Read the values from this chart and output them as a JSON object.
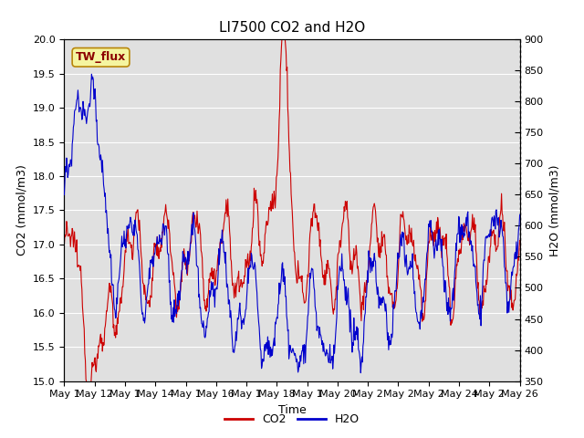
{
  "title": "LI7500 CO2 and H2O",
  "xlabel": "Time",
  "ylabel_left": "CO2 (mmol/m3)",
  "ylabel_right": "H2O (mmol/m3)",
  "annotation": "TW_flux",
  "ylim_left": [
    15.0,
    20.0
  ],
  "ylim_right": [
    350,
    900
  ],
  "x_tick_labels": [
    "May 1",
    "May 12",
    "May 1",
    "May 14",
    "May 1",
    "May 16",
    "May 1",
    "May 18",
    "May 1",
    "May 20",
    "May 2",
    "May 2",
    "May 2",
    "May 24",
    "May 2",
    "May 26"
  ],
  "background_color": "#e0e0e0",
  "fig_background": "#ffffff",
  "co2_color": "#cc0000",
  "h2o_color": "#0000cc",
  "title_fontsize": 11,
  "axis_label_fontsize": 9,
  "tick_fontsize": 8,
  "legend_fontsize": 9,
  "annotation_fontsize": 9,
  "grid_color": "#ffffff",
  "linewidth": 0.8
}
